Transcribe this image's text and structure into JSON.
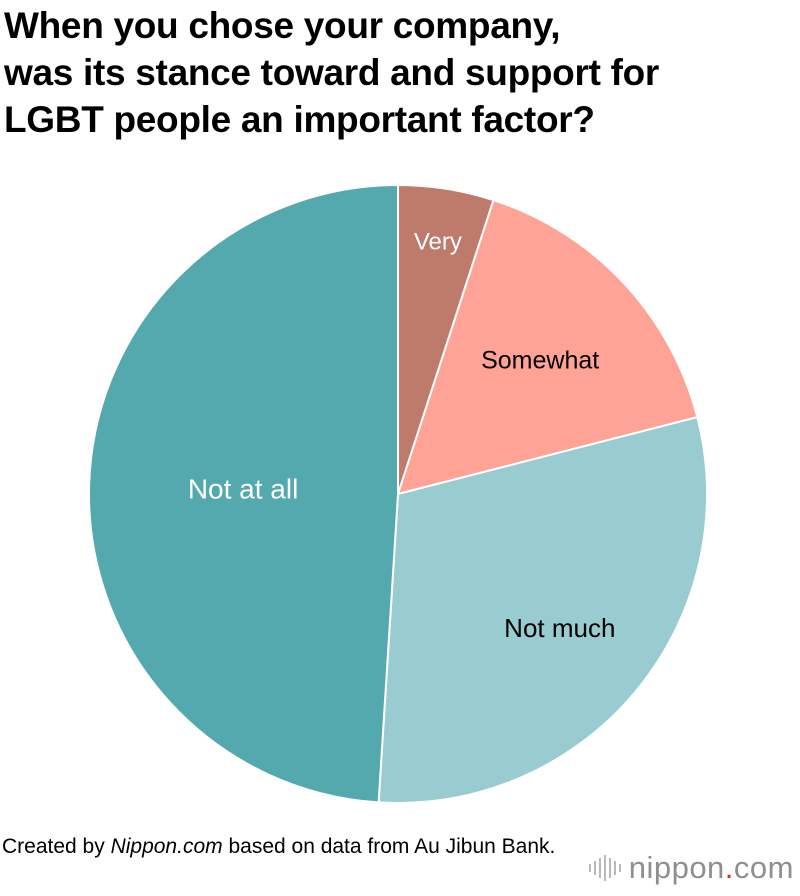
{
  "title_lines": [
    "When you chose your company,",
    "was its stance toward and support for",
    "LGBT people an important factor?"
  ],
  "chart_data": {
    "type": "pie",
    "title": "When you chose your company, was its stance toward and support for LGBT people an important factor?",
    "start": "12 o'clock",
    "direction": "clockwise",
    "categories": [
      "Very",
      "Somewhat",
      "Not much",
      "Not at all"
    ],
    "values": [
      5,
      16,
      30,
      49
    ],
    "unit": "%",
    "colors": [
      "#be7b6c",
      "#fea396",
      "#99ccd0",
      "#53a9ad"
    ],
    "label_colors": [
      "#ffffff",
      "#000000",
      "#000000",
      "#ffffff"
    ]
  },
  "credit": {
    "prefix": "Created by ",
    "source": "Nippon.com",
    "suffix": " based on data from Au Jibun Bank."
  },
  "logo": {
    "name": "nippon",
    "dot": ".",
    "tld": "com"
  }
}
